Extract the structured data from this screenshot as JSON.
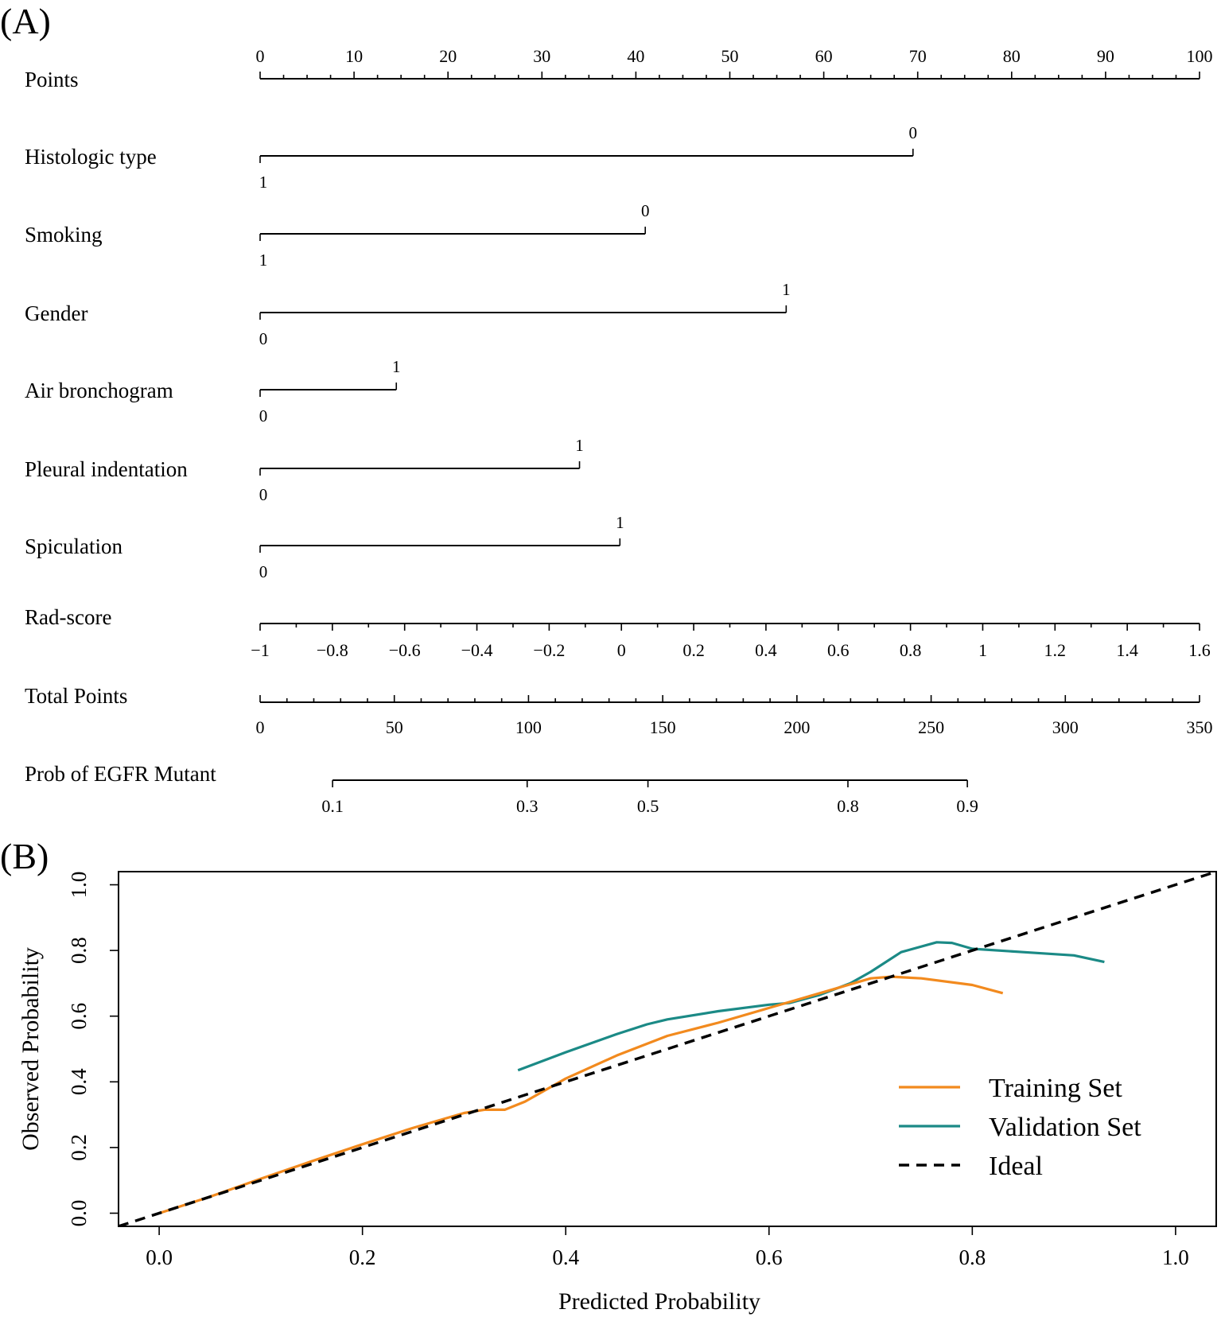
{
  "panel_labels": {
    "a": "(A)",
    "b": "(B)"
  },
  "colors": {
    "training": "#F28A1E",
    "validation": "#1B8A86",
    "ideal": "#000000",
    "axis": "#000000"
  },
  "chart_data": [
    {
      "type": "nomogram",
      "points_axis": {
        "label": "Points",
        "min": 0,
        "max": 100,
        "major_step": 10,
        "minor_step": 2.5,
        "ticks": [
          "0",
          "10",
          "20",
          "30",
          "40",
          "50",
          "60",
          "70",
          "80",
          "90",
          "100"
        ]
      },
      "variables": [
        {
          "name": "Histologic type",
          "levels": [
            {
              "label": "1",
              "points": 0,
              "side": "below"
            },
            {
              "label": "0",
              "points": 69.5,
              "side": "above"
            }
          ]
        },
        {
          "name": "Smoking",
          "levels": [
            {
              "label": "1",
              "points": 0,
              "side": "below"
            },
            {
              "label": "0",
              "points": 41,
              "side": "above"
            }
          ]
        },
        {
          "name": "Gender",
          "levels": [
            {
              "label": "0",
              "points": 0,
              "side": "below"
            },
            {
              "label": "1",
              "points": 56,
              "side": "above"
            }
          ]
        },
        {
          "name": "Air bronchogram",
          "levels": [
            {
              "label": "0",
              "points": 0,
              "side": "below"
            },
            {
              "label": "1",
              "points": 14.5,
              "side": "above"
            }
          ]
        },
        {
          "name": "Pleural indentation",
          "levels": [
            {
              "label": "0",
              "points": 0,
              "side": "below"
            },
            {
              "label": "1",
              "points": 34,
              "side": "above"
            }
          ]
        },
        {
          "name": "Spiculation",
          "levels": [
            {
              "label": "0",
              "points": 0,
              "side": "below"
            },
            {
              "label": "1",
              "points": 38.3,
              "side": "above"
            }
          ]
        }
      ],
      "rad_score": {
        "label": "Rad-score",
        "min": -1,
        "max": 1.6,
        "ticks": [
          {
            "label": "−1",
            "value": -1
          },
          {
            "label": "−0.8",
            "value": -0.8
          },
          {
            "label": "−0.6",
            "value": -0.6
          },
          {
            "label": "−0.4",
            "value": -0.4
          },
          {
            "label": "−0.2",
            "value": -0.2
          },
          {
            "label": "0",
            "value": 0
          },
          {
            "label": "0.2",
            "value": 0.2
          },
          {
            "label": "0.4",
            "value": 0.4
          },
          {
            "label": "0.6",
            "value": 0.6
          },
          {
            "label": "0.8",
            "value": 0.8
          },
          {
            "label": "1",
            "value": 1
          },
          {
            "label": "1.2",
            "value": 1.2
          },
          {
            "label": "1.4",
            "value": 1.4
          },
          {
            "label": "1.6",
            "value": 1.6
          }
        ]
      },
      "total_points": {
        "label": "Total Points",
        "min": 0,
        "max": 350,
        "major_step": 50,
        "minor_step": 10,
        "ticks": [
          "0",
          "50",
          "100",
          "150",
          "200",
          "250",
          "300",
          "350"
        ]
      },
      "probability": {
        "label": "Prob of EGFR Mutant",
        "ticks": [
          {
            "label": "0.1",
            "total_points": 27
          },
          {
            "label": "0.3",
            "total_points": 99.5
          },
          {
            "label": "0.5",
            "total_points": 144.5
          },
          {
            "label": "0.8",
            "total_points": 219
          },
          {
            "label": "0.9",
            "total_points": 263.5
          }
        ]
      }
    },
    {
      "type": "line",
      "xlabel": "Predicted Probability",
      "ylabel": "Observed Probability",
      "xlim": [
        -0.04,
        1.04
      ],
      "ylim": [
        -0.04,
        1.04
      ],
      "xticks": [
        "0.0",
        "0.2",
        "0.4",
        "0.6",
        "0.8",
        "1.0"
      ],
      "yticks": [
        "0.0",
        "0.2",
        "0.4",
        "0.6",
        "0.8",
        "1.0"
      ],
      "legend_position": "bottom-right",
      "series": [
        {
          "name": "Training Set",
          "style": "solid",
          "x": [
            0,
            0.05,
            0.1,
            0.15,
            0.2,
            0.25,
            0.3,
            0.32,
            0.34,
            0.36,
            0.4,
            0.45,
            0.5,
            0.55,
            0.6,
            0.65,
            0.7,
            0.72,
            0.75,
            0.8,
            0.83
          ],
          "y": [
            0,
            0.05,
            0.105,
            0.158,
            0.21,
            0.26,
            0.305,
            0.315,
            0.315,
            0.34,
            0.41,
            0.48,
            0.54,
            0.58,
            0.625,
            0.67,
            0.715,
            0.72,
            0.715,
            0.695,
            0.67
          ]
        },
        {
          "name": "Validation Set",
          "style": "solid",
          "x": [
            0.353,
            0.4,
            0.45,
            0.48,
            0.5,
            0.55,
            0.6,
            0.62,
            0.65,
            0.68,
            0.7,
            0.73,
            0.765,
            0.78,
            0.8,
            0.85,
            0.9,
            0.93
          ],
          "y": [
            0.435,
            0.49,
            0.545,
            0.575,
            0.59,
            0.615,
            0.635,
            0.64,
            0.665,
            0.7,
            0.735,
            0.795,
            0.825,
            0.823,
            0.805,
            0.795,
            0.785,
            0.765
          ]
        },
        {
          "name": "Ideal",
          "style": "dashed",
          "x": [
            -0.04,
            1.04
          ],
          "y": [
            -0.04,
            1.04
          ]
        }
      ]
    }
  ]
}
